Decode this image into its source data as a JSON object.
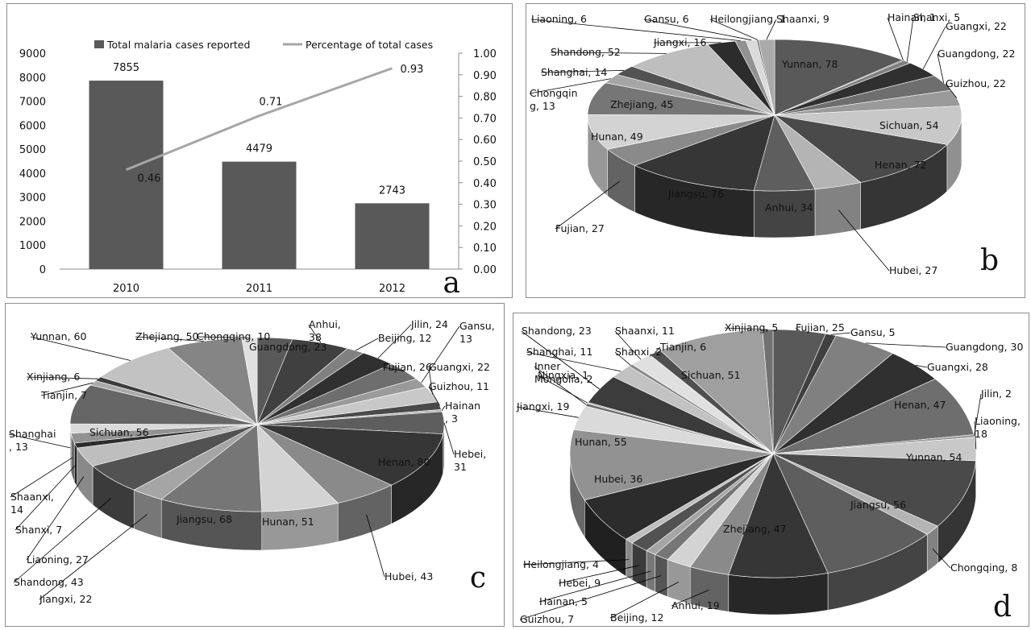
{
  "colors": {
    "bar": "#595959",
    "line": "#a6a6a6",
    "axis": "#8c8c8c",
    "leader": "#000000"
  },
  "chart_data": [
    {
      "panel": "a",
      "type": "bar",
      "categories": [
        "2010",
        "2011",
        "2012"
      ],
      "series": [
        {
          "name": "Total malaria cases reported",
          "type": "bar",
          "axis": "left",
          "values": [
            7855,
            4479,
            2743
          ]
        },
        {
          "name": "Percentage of total cases",
          "type": "line",
          "axis": "right",
          "values": [
            0.46,
            0.71,
            0.93
          ]
        }
      ],
      "bar_labels": [
        "7855",
        "4479",
        "2743"
      ],
      "line_labels": [
        "0.46",
        "0.71",
        "0.93"
      ],
      "ylim": [
        0,
        9000
      ],
      "yticks": [
        "0",
        "1000",
        "2000",
        "3000",
        "4000",
        "5000",
        "6000",
        "7000",
        "8000",
        "9000"
      ],
      "y2lim": [
        0,
        1
      ],
      "y2ticks": [
        "0.00",
        "0.10",
        "0.20",
        "0.30",
        "0.40",
        "0.50",
        "0.60",
        "0.70",
        "0.80",
        "0.90",
        "1.00"
      ],
      "legend_position": "top",
      "panel_label": "a"
    },
    {
      "panel": "b",
      "type": "pie",
      "panel_label": "b",
      "slices": [
        {
          "label": "Yunnan, 78",
          "value": 78
        },
        {
          "label": "Hainan, 1",
          "value": 1
        },
        {
          "label": "Shanxi, 5",
          "value": 5
        },
        {
          "label": "Guangxi, 22",
          "value": 22
        },
        {
          "label": "Guangdong, 22",
          "value": 22
        },
        {
          "label": "Guizhou, 22",
          "value": 22
        },
        {
          "label": "Sichuan, 54",
          "value": 54
        },
        {
          "label": "Henan, 72",
          "value": 72
        },
        {
          "label": "Hubei, 27",
          "value": 27
        },
        {
          "label": "Anhui, 34",
          "value": 34
        },
        {
          "label": "Jiangsu, 76",
          "value": 76
        },
        {
          "label": "Fujian, 27",
          "value": 27
        },
        {
          "label": "Hunan, 49",
          "value": 49
        },
        {
          "label": "Zhejiang, 45",
          "value": 45
        },
        {
          "label": "Chongqin",
          "label2": "g, 13",
          "value": 13
        },
        {
          "label": "Shanghai, 14",
          "value": 14
        },
        {
          "label": "Shandong, 52",
          "value": 52
        },
        {
          "label": "Jiangxi, 16",
          "value": 16
        },
        {
          "label": "Liaoning, 6",
          "value": 6
        },
        {
          "label": "Gansu, 6",
          "value": 6
        },
        {
          "label": "Heilongjiang, 1",
          "value": 1
        },
        {
          "label": "Shaanxi, 9",
          "value": 9
        }
      ]
    },
    {
      "panel": "c",
      "type": "pie",
      "panel_label": "c",
      "slices": [
        {
          "label": "Guangdong, 23",
          "value": 23
        },
        {
          "label": "Anhui,",
          "label2": "38",
          "value": 38
        },
        {
          "label": "Beijing, 12",
          "value": 12
        },
        {
          "label": "Jilin, 24",
          "value": 24
        },
        {
          "label": "Fujian, 26",
          "value": 26
        },
        {
          "label": "Gansu,",
          "label2": "13",
          "value": 13
        },
        {
          "label": "Guangxi, 22",
          "value": 22
        },
        {
          "label": "Guizhou, 11",
          "value": 11
        },
        {
          "label": "Hainan",
          "label2": ", 3",
          "value": 3
        },
        {
          "label": "Hebei,",
          "label2": "31",
          "value": 31
        },
        {
          "label": "Henan, 80",
          "value": 80
        },
        {
          "label": "Hubei, 43",
          "value": 43
        },
        {
          "label": "Hunan, 51",
          "value": 51
        },
        {
          "label": "Jiangsu, 68",
          "value": 68
        },
        {
          "label": "Jiangxi, 22",
          "value": 22
        },
        {
          "label": "Shandong, 43",
          "value": 43
        },
        {
          "label": "Liaoning, 27",
          "value": 27
        },
        {
          "label": "Shanxi, 7",
          "value": 7
        },
        {
          "label": "Shaanxi,",
          "label2": "14",
          "value": 14
        },
        {
          "label": "Shanghai",
          "label2": ", 13",
          "value": 13
        },
        {
          "label": "Sichuan, 56",
          "value": 56
        },
        {
          "label": "Tianjin, 7",
          "value": 7
        },
        {
          "label": "Xinjiang, 6",
          "value": 6
        },
        {
          "label": "Yunnan, 60",
          "value": 60
        },
        {
          "label": "Zhejiang, 50",
          "value": 50
        },
        {
          "label": "Chongqing, 10",
          "value": 10
        }
      ]
    },
    {
      "panel": "d",
      "type": "pie",
      "panel_label": "d",
      "slices": [
        {
          "label": "Fujian, 25",
          "value": 25
        },
        {
          "label": "Gansu, 5",
          "value": 5
        },
        {
          "label": "Guangdong, 30",
          "value": 30
        },
        {
          "label": "Guangxi, 28",
          "value": 28
        },
        {
          "label": "Henan, 47",
          "value": 47
        },
        {
          "label": "Jilin, 2",
          "value": 2
        },
        {
          "label": "Liaoning,",
          "label2": "18",
          "value": 18
        },
        {
          "label": "Yunnan, 54",
          "value": 54
        },
        {
          "label": "Chongqing, 8",
          "value": 8
        },
        {
          "label": "Jiangsu, 56",
          "value": 56
        },
        {
          "label": "Zhejiang, 47",
          "value": 47
        },
        {
          "label": "Anhui, 19",
          "value": 19
        },
        {
          "label": "Beijing, 12",
          "value": 12
        },
        {
          "label": "Guizhou, 7",
          "value": 7
        },
        {
          "label": "Hainan, 5",
          "value": 5
        },
        {
          "label": "Hebei, 9",
          "value": 9
        },
        {
          "label": "Heilongjiang, 4",
          "value": 4
        },
        {
          "label": "Hubei, 36",
          "value": 36
        },
        {
          "label": "Hunan, 55",
          "value": 55
        },
        {
          "label": "Jiangxi, 19",
          "value": 19
        },
        {
          "label": "Inner",
          "label2": "Mongolia, 2",
          "value": 2
        },
        {
          "label": "Ningxia, 1",
          "value": 1
        },
        {
          "label": "Shandong, 23",
          "value": 23
        },
        {
          "label": "Shanghai, 11",
          "value": 11
        },
        {
          "label": "Shanxi, 2",
          "value": 2
        },
        {
          "label": "Shaanxi, 11",
          "value": 11
        },
        {
          "label": "Tianjin, 6",
          "value": 6
        },
        {
          "label": "Sichuan, 51",
          "value": 51
        },
        {
          "label": "Xinjiang, 5",
          "value": 5
        }
      ]
    }
  ]
}
